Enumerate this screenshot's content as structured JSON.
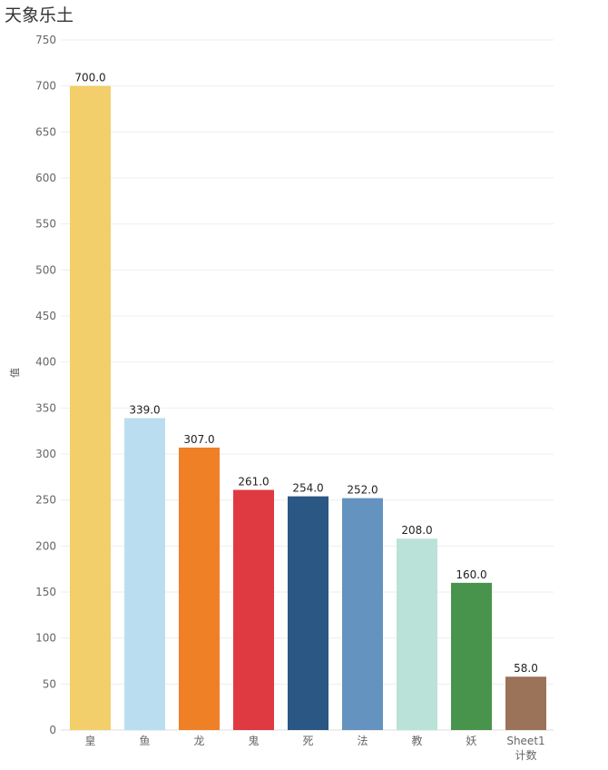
{
  "chart_data": {
    "type": "bar",
    "title": "天象乐土",
    "ylabel": "值",
    "xlabel": "",
    "ylim": [
      0,
      750
    ],
    "yticks": [
      0,
      50,
      100,
      150,
      200,
      250,
      300,
      350,
      400,
      450,
      500,
      550,
      600,
      650,
      700,
      750
    ],
    "grid": true,
    "categories": [
      "皇",
      "鱼",
      "龙",
      "鬼",
      "死",
      "法",
      "教",
      "妖",
      "Sheet1 计数"
    ],
    "values": [
      700.0,
      339.0,
      307.0,
      261.0,
      254.0,
      252.0,
      208.0,
      160.0,
      58.0
    ],
    "value_labels": [
      "700.0",
      "339.0",
      "307.0",
      "261.0",
      "254.0",
      "252.0",
      "208.0",
      "160.0",
      "58.0"
    ],
    "colors": [
      "#F2CF6A",
      "#BADEF0",
      "#EF8026",
      "#DF3A42",
      "#2A5783",
      "#6393BE",
      "#BBE2D8",
      "#48944C",
      "#9A7358"
    ]
  }
}
